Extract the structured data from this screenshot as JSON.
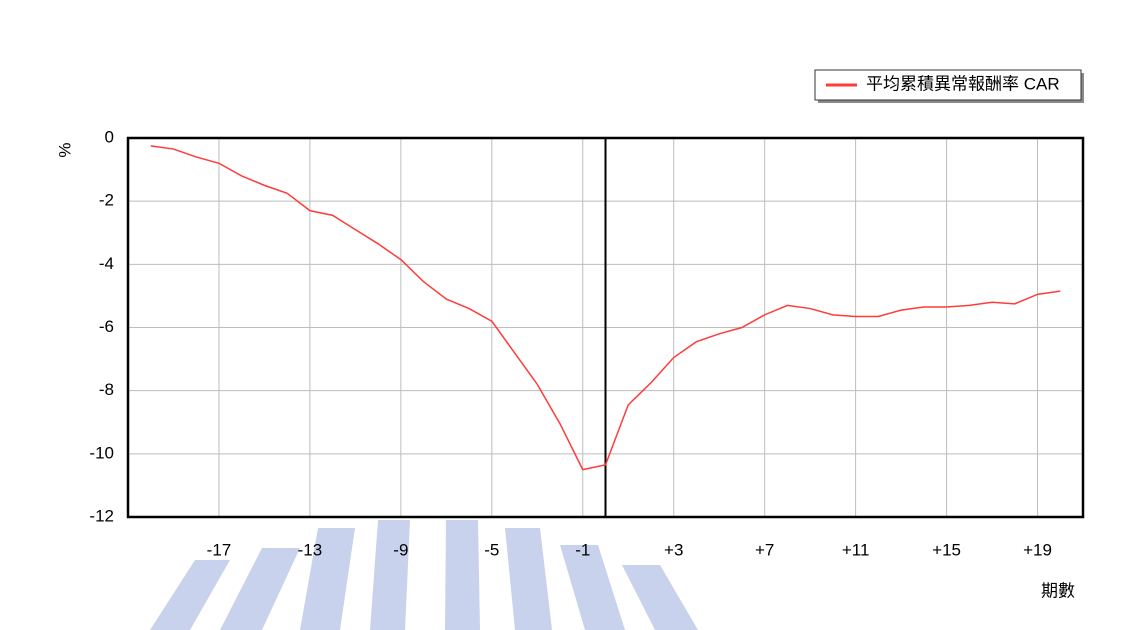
{
  "chart_data": {
    "type": "line",
    "x_label": "期數",
    "y_label": "%",
    "x": [
      -20,
      -19,
      -18,
      -17,
      -16,
      -15,
      -14,
      -13,
      -12,
      -11,
      -10,
      -9,
      -8,
      -7,
      -6,
      -5,
      -4,
      -3,
      -2,
      -1,
      0,
      1,
      2,
      3,
      4,
      5,
      6,
      7,
      8,
      9,
      10,
      11,
      12,
      13,
      14,
      15,
      16,
      17,
      18,
      19,
      20
    ],
    "series": [
      {
        "name": "平均累積異常報酬率 CAR",
        "color": "#ff3b3b",
        "values": [
          -0.25,
          -0.35,
          -0.6,
          -0.8,
          -1.2,
          -1.5,
          -1.75,
          -2.3,
          -2.45,
          -2.9,
          -3.35,
          -3.85,
          -4.55,
          -5.1,
          -5.4,
          -5.8,
          -6.8,
          -7.8,
          -9.05,
          -10.5,
          -10.35,
          -8.45,
          -7.75,
          -6.95,
          -6.45,
          -6.2,
          -6.0,
          -5.6,
          -5.3,
          -5.4,
          -5.6,
          -5.65,
          -5.65,
          -5.45,
          -5.35,
          -5.35,
          -5.3,
          -5.2,
          -5.25,
          -4.95,
          -4.85
        ]
      }
    ],
    "xlim": [
      -21,
      21
    ],
    "ylim": [
      -12,
      0
    ],
    "xticks": [
      -17,
      -13,
      -9,
      -5,
      -1,
      {
        "value": 3,
        "label": "+3"
      },
      {
        "value": 7,
        "label": "+7"
      },
      {
        "value": 11,
        "label": "+11"
      },
      {
        "value": 15,
        "label": "+15"
      },
      {
        "value": 19,
        "label": "+19"
      }
    ],
    "yticks": [
      0,
      -2,
      -4,
      -6,
      -8,
      -10,
      -12
    ],
    "vline": 0,
    "grid": true,
    "legend": "top-right"
  }
}
